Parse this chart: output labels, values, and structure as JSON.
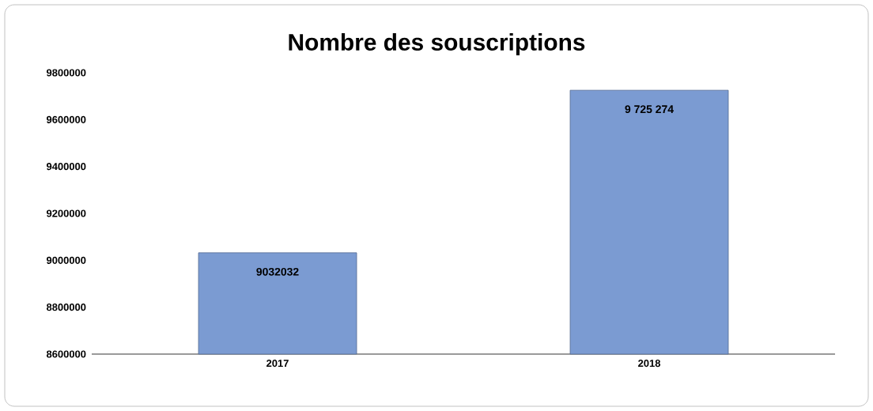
{
  "chart_data": {
    "type": "bar",
    "title": "Nombre des souscriptions",
    "categories": [
      "2017",
      "2018"
    ],
    "values": [
      9032032,
      9725274
    ],
    "value_labels": [
      "9032032",
      "9 725 274"
    ],
    "color": "#7b9bd2",
    "ylim": [
      8600000,
      9800000
    ],
    "yticks": [
      8600000,
      8800000,
      9000000,
      9200000,
      9400000,
      9600000,
      9800000
    ],
    "grid": false
  }
}
